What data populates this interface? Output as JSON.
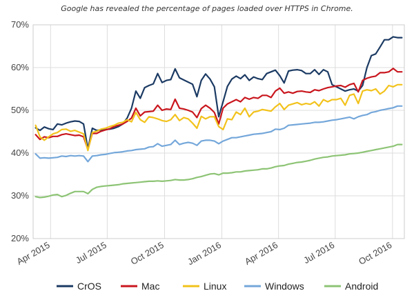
{
  "caption": "Google has revealed the percentage of pages loaded over HTTPS in Chrome.",
  "chart_data": {
    "type": "line",
    "title": "",
    "xlabel": "",
    "ylabel": "",
    "ylim": [
      20,
      70
    ],
    "y_ticks": [
      20,
      30,
      40,
      50,
      60,
      70
    ],
    "y_tick_suffix": "%",
    "x_tick_labels": [
      "Apr 2015",
      "Jul 2015",
      "Oct 2015",
      "Jan 2016",
      "Apr 2016",
      "Jul 2016",
      "Oct 2016"
    ],
    "grid": true,
    "legend_position": "bottom",
    "x": [
      "2015-03-08",
      "2015-03-15",
      "2015-03-22",
      "2015-03-29",
      "2015-04-05",
      "2015-04-12",
      "2015-04-19",
      "2015-04-26",
      "2015-05-03",
      "2015-05-10",
      "2015-05-17",
      "2015-05-24",
      "2015-05-31",
      "2015-06-07",
      "2015-06-14",
      "2015-06-21",
      "2015-06-28",
      "2015-07-05",
      "2015-07-12",
      "2015-07-19",
      "2015-07-26",
      "2015-08-02",
      "2015-08-09",
      "2015-08-16",
      "2015-08-23",
      "2015-08-30",
      "2015-09-06",
      "2015-09-13",
      "2015-09-20",
      "2015-09-27",
      "2015-10-04",
      "2015-10-11",
      "2015-10-18",
      "2015-10-25",
      "2015-11-01",
      "2015-11-08",
      "2015-11-15",
      "2015-11-22",
      "2015-11-29",
      "2015-12-06",
      "2015-12-13",
      "2015-12-20",
      "2015-12-27",
      "2016-01-03",
      "2016-01-10",
      "2016-01-17",
      "2016-01-24",
      "2016-01-31",
      "2016-02-07",
      "2016-02-14",
      "2016-02-21",
      "2016-02-28",
      "2016-03-06",
      "2016-03-13",
      "2016-03-20",
      "2016-03-27",
      "2016-04-03",
      "2016-04-10",
      "2016-04-17",
      "2016-04-24",
      "2016-05-01",
      "2016-05-08",
      "2016-05-15",
      "2016-05-22",
      "2016-05-29",
      "2016-06-05",
      "2016-06-12",
      "2016-06-19",
      "2016-06-26",
      "2016-07-03",
      "2016-07-10",
      "2016-07-17",
      "2016-07-24",
      "2016-07-31",
      "2016-08-07",
      "2016-08-14",
      "2016-08-21",
      "2016-08-28",
      "2016-09-04",
      "2016-09-11",
      "2016-09-18",
      "2016-09-25",
      "2016-10-02",
      "2016-10-09",
      "2016-10-16"
    ],
    "series": [
      {
        "name": "CrOS",
        "color": "#1b3a63",
        "values": [
          45.9,
          45.3,
          46.1,
          45.7,
          45.5,
          46.8,
          46.6,
          47.0,
          47.3,
          47.5,
          47.4,
          46.8,
          41.0,
          45.8,
          45.3,
          45.4,
          45.5,
          45.6,
          45.8,
          46.2,
          46.8,
          48.2,
          50.5,
          54.5,
          52.8,
          55.3,
          55.8,
          56.2,
          58.6,
          56.5,
          57.0,
          57.2,
          59.7,
          57.6,
          57.1,
          56.6,
          56.1,
          53.2,
          57.0,
          58.5,
          57.3,
          55.5,
          48.5,
          52.0,
          55.6,
          57.3,
          58.0,
          57.4,
          58.3,
          57.0,
          57.8,
          57.4,
          57.2,
          58.6,
          59.0,
          59.4,
          58.1,
          56.4,
          59.2,
          59.4,
          59.5,
          59.3,
          58.6,
          58.6,
          59.5,
          58.4,
          59.5,
          59.0,
          56.0,
          55.5,
          55.0,
          54.5,
          54.8,
          55.0,
          54.5,
          55.8,
          60.0,
          62.8,
          63.2,
          64.8,
          66.5,
          66.5,
          67.2,
          67.0,
          67.0
        ]
      },
      {
        "name": "Mac",
        "color": "#c9161d",
        "values": [
          44.3,
          43.2,
          43.8,
          43.6,
          43.9,
          43.9,
          44.3,
          44.5,
          44.3,
          44.1,
          44.2,
          43.8,
          40.8,
          44.6,
          44.6,
          45.1,
          45.4,
          45.7,
          46.2,
          46.5,
          46.8,
          47.4,
          48.2,
          50.5,
          48.7,
          49.6,
          49.7,
          49.8,
          51.2,
          50.0,
          50.3,
          50.2,
          52.6,
          50.5,
          50.3,
          50.0,
          49.6,
          48.3,
          50.4,
          51.2,
          50.5,
          49.5,
          46.8,
          50.5,
          51.5,
          52.0,
          52.5,
          52.0,
          53.0,
          52.6,
          53.0,
          52.8,
          53.5,
          53.5,
          53.0,
          54.5,
          55.2,
          54.0,
          54.3,
          54.0,
          54.4,
          54.5,
          54.3,
          54.2,
          54.8,
          54.6,
          55.0,
          55.3,
          55.5,
          55.7,
          55.8,
          55.4,
          56.0,
          56.3,
          54.3,
          57.0,
          57.5,
          57.8,
          58.0,
          58.8,
          58.8,
          59.0,
          59.8,
          59.0,
          59.0
        ]
      },
      {
        "name": "Linux",
        "color": "#f2c21b",
        "values": [
          46.5,
          43.8,
          43.0,
          43.8,
          44.5,
          44.8,
          45.5,
          45.6,
          45.1,
          45.3,
          44.9,
          44.5,
          40.6,
          44.8,
          45.1,
          45.6,
          45.8,
          46.2,
          46.5,
          47.0,
          47.2,
          47.8,
          47.3,
          49.5,
          47.8,
          47.2,
          48.5,
          48.3,
          48.0,
          47.6,
          47.4,
          47.8,
          49.0,
          47.6,
          48.3,
          48.0,
          47.0,
          45.8,
          48.6,
          48.0,
          48.5,
          48.5,
          46.2,
          45.5,
          48.0,
          47.8,
          49.6,
          49.0,
          50.5,
          48.5,
          49.6,
          49.8,
          50.2,
          50.0,
          49.8,
          50.8,
          51.6,
          50.2,
          51.2,
          51.5,
          51.8,
          51.3,
          51.6,
          51.4,
          52.0,
          51.0,
          52.5,
          52.0,
          52.5,
          52.5,
          52.8,
          51.2,
          53.5,
          53.8,
          51.6,
          54.5,
          54.8,
          54.6,
          55.0,
          53.8,
          54.5,
          55.8,
          55.5,
          56.0,
          56.0
        ]
      },
      {
        "name": "Windows",
        "color": "#74a7da",
        "values": [
          39.8,
          38.8,
          38.9,
          38.8,
          38.9,
          39.0,
          39.3,
          39.2,
          39.4,
          39.3,
          39.4,
          39.3,
          38.0,
          39.3,
          39.4,
          39.6,
          39.7,
          39.9,
          40.1,
          40.2,
          40.3,
          40.5,
          40.6,
          40.8,
          40.9,
          41.0,
          41.4,
          41.5,
          42.2,
          41.6,
          41.8,
          42.0,
          43.0,
          42.0,
          42.3,
          42.5,
          42.3,
          41.8,
          42.8,
          43.0,
          43.0,
          42.8,
          42.2,
          42.8,
          43.2,
          43.6,
          43.6,
          43.8,
          44.0,
          44.2,
          44.4,
          44.5,
          44.6,
          44.8,
          45.0,
          45.6,
          45.5,
          45.8,
          46.5,
          46.6,
          46.7,
          46.8,
          46.9,
          47.0,
          47.2,
          47.2,
          47.3,
          47.5,
          47.7,
          47.8,
          48.0,
          48.2,
          48.4,
          48.0,
          48.5,
          48.8,
          49.0,
          49.5,
          49.7,
          50.0,
          50.2,
          50.4,
          50.6,
          51.0,
          51.0
        ]
      },
      {
        "name": "Android",
        "color": "#8dc475",
        "values": [
          29.8,
          29.6,
          29.7,
          29.9,
          30.2,
          30.3,
          29.8,
          30.1,
          30.6,
          31.0,
          31.0,
          31.0,
          30.5,
          31.5,
          32.0,
          32.2,
          32.3,
          32.4,
          32.5,
          32.6,
          32.8,
          32.9,
          33.0,
          33.1,
          33.2,
          33.3,
          33.4,
          33.4,
          33.5,
          33.4,
          33.5,
          33.6,
          33.8,
          33.7,
          33.7,
          33.8,
          34.0,
          34.3,
          34.5,
          34.8,
          35.1,
          35.2,
          34.9,
          35.3,
          35.3,
          35.4,
          35.6,
          35.6,
          35.8,
          35.9,
          36.0,
          36.1,
          36.3,
          36.3,
          36.5,
          36.8,
          37.0,
          37.1,
          37.4,
          37.6,
          37.8,
          37.9,
          38.1,
          38.3,
          38.6,
          38.8,
          39.0,
          39.1,
          39.3,
          39.4,
          39.5,
          39.6,
          39.8,
          39.9,
          40.0,
          40.2,
          40.4,
          40.6,
          40.8,
          41.0,
          41.2,
          41.4,
          41.6,
          42.0,
          42.0
        ]
      }
    ]
  }
}
